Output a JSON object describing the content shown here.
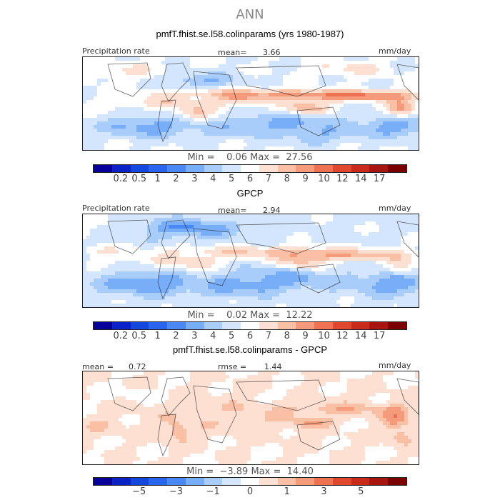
{
  "title": "ANN",
  "colors": {
    "precip": [
      "#08009a",
      "#0a22c8",
      "#1446e0",
      "#2a65ef",
      "#4a88f5",
      "#78adf8",
      "#a8cdfb",
      "#d3e6fd",
      "#ffffff",
      "#fde0d2",
      "#f9c0a6",
      "#f59a7a",
      "#ee7152",
      "#e0472e",
      "#c92a1c",
      "#a8140f",
      "#7a0000"
    ],
    "diff": [
      "#08009a",
      "#0a22c8",
      "#1446e0",
      "#2a65ef",
      "#4a88f5",
      "#78adf8",
      "#a8cdfb",
      "#d3e6fd",
      "#ffffff",
      "#fde0d2",
      "#f9c0a6",
      "#f59a7a",
      "#ee7152",
      "#e0472e",
      "#c92a1c",
      "#a8140f",
      "#7a0000"
    ]
  },
  "chart_data": [
    {
      "type": "heatmap",
      "title": "pmfT.fhist.se.l58.colinparams (yrs 1980-1987)",
      "left_label": "Precipitation rate",
      "stat_label": "mean=",
      "stat_value": "3.66",
      "units": "mm/day",
      "min_label": "Min =",
      "min_value": "0.06",
      "max_label": "Max =",
      "max_value": "27.56",
      "colorbar_ticks": [
        "0.2",
        "0.5",
        "1",
        "2",
        "3",
        "4",
        "5",
        "6",
        "7",
        "8",
        "9",
        "10",
        "12",
        "14",
        "17"
      ]
    },
    {
      "type": "heatmap",
      "title": "GPCP",
      "left_label": "Precipitation rate",
      "stat_label": "mean=",
      "stat_value": "2.94",
      "units": "mm/day",
      "min_label": "Min =",
      "min_value": "0.02",
      "max_label": "Max =",
      "max_value": "12.22",
      "colorbar_ticks": [
        "0.2",
        "0.5",
        "1",
        "2",
        "3",
        "4",
        "5",
        "6",
        "7",
        "8",
        "9",
        "10",
        "12",
        "14",
        "17"
      ]
    },
    {
      "type": "heatmap",
      "title": "pmfT.fhist.se.l58.colinparams - GPCP",
      "left_label": "mean =",
      "stat_value": "0.72",
      "stat_label": "rmse =",
      "rmse_value": "1.44",
      "units": "mm/day",
      "min_label": "Min =",
      "min_value": "−3.89",
      "max_label": "Max =",
      "max_value": "14.40",
      "colorbar_ticks": [
        "−5",
        "−3",
        "−1",
        "0",
        "1",
        "3",
        "5"
      ]
    }
  ]
}
